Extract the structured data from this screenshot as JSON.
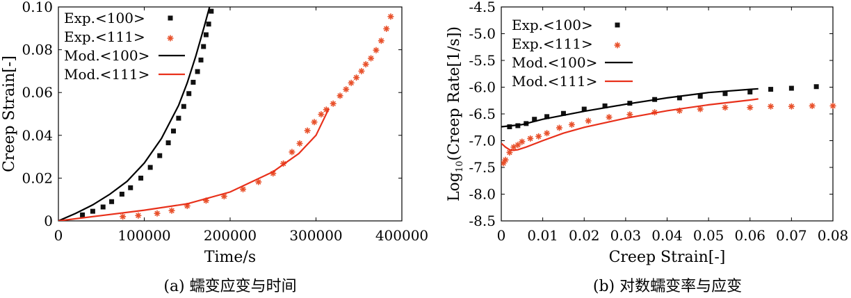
{
  "chart_data": [
    {
      "type": "scatter",
      "caption": "(a) 蠕变应变与时间",
      "xlabel": "Time/s",
      "ylabel": "Creep Strain[-]",
      "xlim": [
        0,
        400000
      ],
      "ylim": [
        0,
        0.1
      ],
      "xticks": [
        "0",
        "100000",
        "200000",
        "300000",
        "400000"
      ],
      "xtick_values": [
        0,
        100000,
        200000,
        300000,
        400000
      ],
      "yticks": [
        "0",
        "0.02",
        "0.04",
        "0.06",
        "0.08",
        "0.10"
      ],
      "ytick_values": [
        0,
        0.02,
        0.04,
        0.06,
        0.08,
        0.1
      ],
      "legend_position": "top-left",
      "series": [
        {
          "name": "Exp.<100>",
          "kind": "marker-square",
          "color": "#111111",
          "x": [
            28000,
            40000,
            52000,
            62000,
            74000,
            84000,
            96000,
            107000,
            118000,
            128000,
            134000,
            140000,
            146000,
            152000,
            157000,
            162000,
            166000,
            169000,
            172000,
            175000,
            178000
          ],
          "y": [
            0.0028,
            0.0045,
            0.0065,
            0.009,
            0.0125,
            0.0155,
            0.02,
            0.025,
            0.0305,
            0.0365,
            0.042,
            0.048,
            0.0535,
            0.0595,
            0.0648,
            0.0698,
            0.0752,
            0.0815,
            0.087,
            0.092,
            0.098
          ]
        },
        {
          "name": "Exp.<111>",
          "kind": "marker-asterisk",
          "color": "#e8502a",
          "x": [
            75000,
            93000,
            115000,
            132000,
            150000,
            172000,
            193000,
            215000,
            233000,
            250000,
            262000,
            272000,
            281000,
            290000,
            298000,
            306000,
            312000,
            320000,
            328000,
            335000,
            341000,
            347000,
            353000,
            358000,
            364000,
            370000,
            376000,
            382000,
            387000
          ],
          "y": [
            0.002,
            0.0025,
            0.0035,
            0.0048,
            0.007,
            0.0095,
            0.0115,
            0.0148,
            0.0182,
            0.0222,
            0.0268,
            0.0322,
            0.0362,
            0.0422,
            0.0462,
            0.0498,
            0.052,
            0.0548,
            0.0585,
            0.0615,
            0.0645,
            0.067,
            0.07,
            0.0732,
            0.076,
            0.0798,
            0.0842,
            0.0898,
            0.0955
          ]
        },
        {
          "name": "Mod.<100>",
          "kind": "line",
          "color": "#000000",
          "x": [
            0,
            20000,
            40000,
            60000,
            80000,
            100000,
            120000,
            140000,
            150000,
            160000,
            170000,
            176000
          ],
          "y": [
            0,
            0.0035,
            0.0075,
            0.0125,
            0.0185,
            0.027,
            0.0385,
            0.054,
            0.0645,
            0.077,
            0.091,
            0.1
          ]
        },
        {
          "name": "Mod.<111>",
          "kind": "line",
          "color": "#e8301a",
          "x": [
            0,
            50000,
            100000,
            150000,
            200000,
            250000,
            280000,
            300000,
            315000
          ],
          "y": [
            0,
            0.0025,
            0.005,
            0.008,
            0.0135,
            0.023,
            0.0315,
            0.04,
            0.0525
          ]
        }
      ]
    },
    {
      "type": "scatter",
      "caption": "(b) 对数蠕变率与应变",
      "xlabel": "Creep Strain[-]",
      "ylabel": "Log10(Creep Rate[1/s])",
      "ylabel_parts": {
        "pre": "Log",
        "sub": "10",
        "post": "(Creep Rate[1/s])"
      },
      "xlim": [
        0,
        0.08
      ],
      "ylim": [
        -8.5,
        -4.5
      ],
      "xticks": [
        "0",
        "0.01",
        "0.02",
        "0.03",
        "0.04",
        "0.05",
        "0.06",
        "0.07",
        "0.08"
      ],
      "xtick_values": [
        0,
        0.01,
        0.02,
        0.03,
        0.04,
        0.05,
        0.06,
        0.07,
        0.08
      ],
      "yticks": [
        "-4.5",
        "-5.0",
        "-5.5",
        "-6.0",
        "-6.5",
        "-7.0",
        "-7.5",
        "-8.0",
        "-8.5"
      ],
      "ytick_values": [
        -4.5,
        -5.0,
        -5.5,
        -6.0,
        -6.5,
        -7.0,
        -7.5,
        -8.0,
        -8.5
      ],
      "legend_position": "top-left",
      "series": [
        {
          "name": "Exp.<100>",
          "kind": "marker-square",
          "color": "#111111",
          "x": [
            0.002,
            0.004,
            0.006,
            0.008,
            0.011,
            0.015,
            0.02,
            0.025,
            0.031,
            0.037,
            0.043,
            0.048,
            0.054,
            0.06,
            0.065,
            0.07,
            0.076
          ],
          "y": [
            -6.74,
            -6.72,
            -6.68,
            -6.6,
            -6.55,
            -6.49,
            -6.41,
            -6.35,
            -6.3,
            -6.23,
            -6.2,
            -6.17,
            -6.12,
            -6.09,
            -6.04,
            -6.02,
            -5.99
          ]
        },
        {
          "name": "Exp.<111>",
          "kind": "marker-asterisk",
          "color": "#e8502a",
          "x": [
            0.0005,
            0.001,
            0.002,
            0.003,
            0.004,
            0.005,
            0.007,
            0.009,
            0.011,
            0.014,
            0.017,
            0.021,
            0.026,
            0.031,
            0.037,
            0.043,
            0.048,
            0.054,
            0.06,
            0.065,
            0.07,
            0.075,
            0.08
          ],
          "y": [
            -7.42,
            -7.36,
            -7.22,
            -7.12,
            -7.08,
            -7.02,
            -6.96,
            -6.92,
            -6.86,
            -6.76,
            -6.7,
            -6.63,
            -6.56,
            -6.51,
            -6.47,
            -6.44,
            -6.41,
            -6.38,
            -6.38,
            -6.36,
            -6.36,
            -6.35,
            -6.35
          ]
        },
        {
          "name": "Mod.<100>",
          "kind": "line",
          "color": "#000000",
          "x": [
            0,
            0.005,
            0.01,
            0.02,
            0.03,
            0.04,
            0.05,
            0.06,
            0.062
          ],
          "y": [
            -6.74,
            -6.7,
            -6.6,
            -6.45,
            -6.32,
            -6.2,
            -6.1,
            -6.04,
            -6.03
          ]
        },
        {
          "name": "Mod.<111>",
          "kind": "line",
          "color": "#e8301a",
          "x": [
            0,
            0.001,
            0.002,
            0.003,
            0.004,
            0.006,
            0.01,
            0.015,
            0.02,
            0.03,
            0.04,
            0.05,
            0.06,
            0.062
          ],
          "y": [
            -7.05,
            -7.12,
            -7.17,
            -7.18,
            -7.17,
            -7.12,
            -7.0,
            -6.86,
            -6.75,
            -6.58,
            -6.44,
            -6.33,
            -6.24,
            -6.22
          ]
        }
      ]
    }
  ]
}
